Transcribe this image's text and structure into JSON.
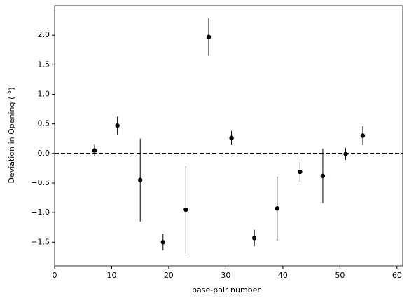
{
  "chart_data": {
    "type": "errorbar",
    "xlabel": "base-pair number",
    "ylabel": "Deviation in Opening ( °)",
    "x": [
      7,
      11,
      15,
      19,
      23,
      27,
      31,
      35,
      39,
      43,
      47,
      51,
      54
    ],
    "values": [
      0.05,
      0.47,
      -0.45,
      -1.5,
      -0.95,
      1.97,
      0.26,
      -1.43,
      -0.93,
      -0.31,
      -0.38,
      -0.01,
      0.3
    ],
    "errors": [
      0.1,
      0.15,
      0.7,
      0.14,
      0.74,
      0.32,
      0.12,
      0.14,
      0.54,
      0.17,
      0.46,
      0.1,
      0.16
    ],
    "color": "#000000",
    "hline": 0,
    "xlim": [
      0,
      61
    ],
    "xticks": [
      0,
      10,
      20,
      30,
      40,
      50,
      60
    ],
    "ylim": [
      -1.9,
      2.5
    ],
    "yticks": [
      {
        "value": -1.5,
        "label": "−1.5"
      },
      {
        "value": -1,
        "label": "−1.0"
      },
      {
        "value": -0.5,
        "label": "−0.5"
      },
      {
        "value": 0,
        "label": "0.0"
      },
      {
        "value": 0.5,
        "label": "0.5"
      },
      {
        "value": 1,
        "label": "1.0"
      },
      {
        "value": 1.5,
        "label": "1.5"
      },
      {
        "value": 2,
        "label": "2.0"
      }
    ]
  }
}
